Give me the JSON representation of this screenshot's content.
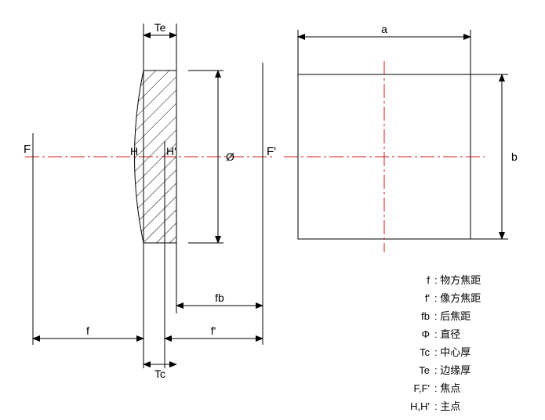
{
  "diagram": {
    "type": "technical-drawing",
    "stroke_color": "#000000",
    "stroke_width": 1,
    "hatch_color": "#000000",
    "centerline_color": "#d01818",
    "background": "#ffffff",
    "label_fontsize": 14,
    "points": {
      "F": "F",
      "Fp": "F'",
      "H": "H",
      "Hp": "H'",
      "diam": "Ø"
    },
    "dims": {
      "Te": "Te",
      "Tc": "Tc",
      "f": "f",
      "fp": "f'",
      "fb": "fb",
      "a": "a",
      "b": "b"
    },
    "legend": [
      {
        "sym": "f",
        "desc": "物方焦距"
      },
      {
        "sym": "f'",
        "desc": "像方焦距"
      },
      {
        "sym": "fb",
        "desc": "后焦距"
      },
      {
        "sym": "Φ",
        "desc": "直径"
      },
      {
        "sym": "Tc",
        "desc": "中心厚"
      },
      {
        "sym": "Te",
        "desc": "边缘厚"
      },
      {
        "sym": "F,F'",
        "desc": "焦点"
      },
      {
        "sym": "H,H'",
        "desc": "主点"
      }
    ]
  }
}
